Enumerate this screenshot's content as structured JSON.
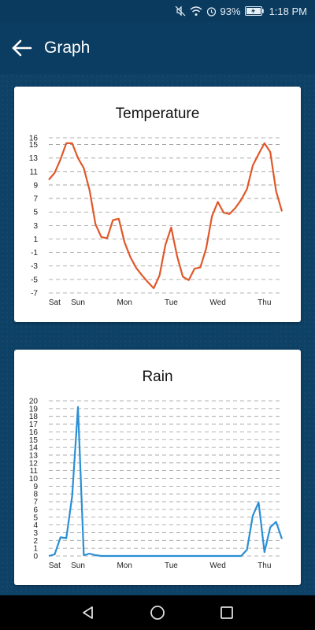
{
  "status_bar": {
    "battery": "93%",
    "time": "1:18 PM",
    "icons": [
      "mute-icon",
      "wifi-icon",
      "alarm-icon",
      "battery-icon"
    ]
  },
  "app_bar": {
    "title": "Graph",
    "back_icon": "arrow-left-icon"
  },
  "colors": {
    "temperature_line": "#e0582a",
    "rain_line": "#2a8fd4",
    "background": "#0e4166"
  },
  "nav_bar": {
    "icons": [
      "back-triangle-icon",
      "home-circle-icon",
      "recents-square-icon"
    ]
  },
  "chart_data": [
    {
      "type": "line",
      "title": "Temperature",
      "xlabel": "",
      "ylabel": "",
      "ylim": [
        -7,
        16
      ],
      "yticks": [
        "16",
        "15",
        "13",
        "11",
        "9",
        "7",
        "5",
        "3",
        "1",
        "-1",
        "-3",
        "-5",
        "-7"
      ],
      "x_tick_labels": [
        {
          "label": "Sat",
          "pos": 1
        },
        {
          "label": "Sun",
          "pos": 5
        },
        {
          "label": "Mon",
          "pos": 13
        },
        {
          "label": "Tue",
          "pos": 21
        },
        {
          "label": "Wed",
          "pos": 29
        },
        {
          "label": "Thu",
          "pos": 37
        }
      ],
      "x_count": 41,
      "grid": "horizontal-dashed",
      "series": [
        {
          "values": [
            9.8,
            10.8,
            12.8,
            15.2,
            15.2,
            13,
            11.5,
            8.2,
            3.2,
            1.3,
            1.1,
            3.8,
            4,
            0.5,
            -1.7,
            -3.3,
            -4.4,
            -5.4,
            -6.3,
            -4.4,
            0.1,
            2.7,
            -1.5,
            -4.6,
            -5.1,
            -3.4,
            -3.2,
            -0.4,
            4.4,
            6.5,
            4.9,
            4.7,
            5.6,
            6.8,
            8.4,
            11.9,
            13.6,
            15.2,
            13.9,
            8.1,
            5.1
          ]
        }
      ]
    },
    {
      "type": "line",
      "title": "Rain",
      "xlabel": "",
      "ylabel": "",
      "ylim": [
        0,
        20
      ],
      "yticks": [
        "20",
        "19",
        "18",
        "17",
        "16",
        "15",
        "14",
        "13",
        "12",
        "11",
        "10",
        "9",
        "8",
        "7",
        "6",
        "5",
        "4",
        "3",
        "2",
        "1",
        "0"
      ],
      "x_tick_labels": [
        {
          "label": "Sat",
          "pos": 1
        },
        {
          "label": "Sun",
          "pos": 5
        },
        {
          "label": "Mon",
          "pos": 13
        },
        {
          "label": "Tue",
          "pos": 21
        },
        {
          "label": "Wed",
          "pos": 29
        },
        {
          "label": "Thu",
          "pos": 37
        }
      ],
      "x_count": 41,
      "grid": "horizontal-dashed",
      "series": [
        {
          "values": [
            0,
            0.2,
            2.4,
            2.3,
            7.7,
            19.2,
            0.1,
            0.3,
            0.1,
            0,
            0,
            0,
            0,
            0,
            0,
            0,
            0,
            0,
            0,
            0,
            0,
            0,
            0,
            0,
            0,
            0,
            0,
            0,
            0,
            0,
            0,
            0,
            0,
            0,
            0.8,
            5.2,
            6.9,
            0.5,
            3.7,
            4.4,
            2.2
          ]
        }
      ]
    }
  ]
}
